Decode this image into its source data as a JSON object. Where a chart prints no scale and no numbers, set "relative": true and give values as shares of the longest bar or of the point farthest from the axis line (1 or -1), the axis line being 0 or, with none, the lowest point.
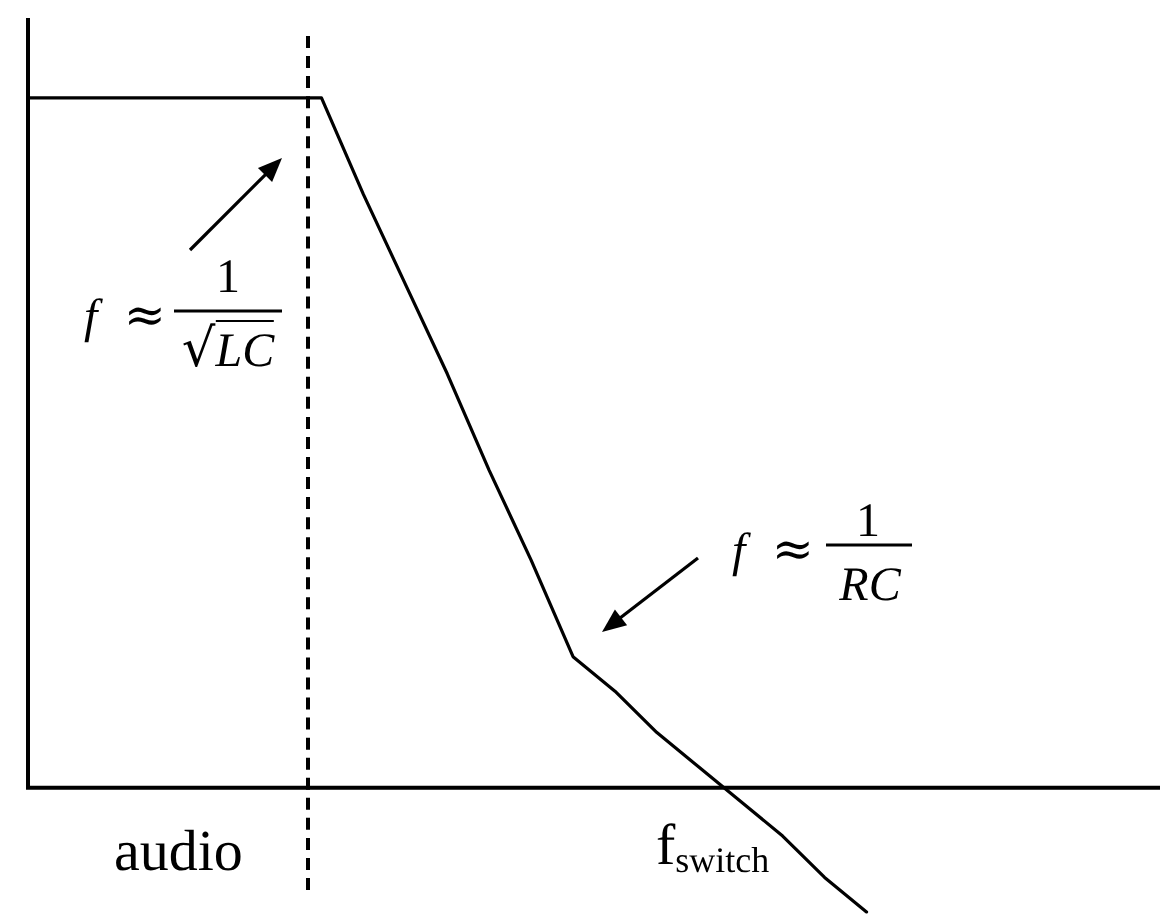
{
  "chart_data": {
    "type": "line",
    "relative": true,
    "categories": [
      null,
      null,
      null,
      null,
      null,
      null,
      null,
      null,
      null,
      null,
      null,
      null,
      null,
      null,
      null,
      null,
      null,
      null,
      null,
      null,
      null,
      null,
      null,
      null,
      null,
      null,
      null,
      null
    ],
    "series": [
      {
        "color": "#000000",
        "values": [
          1,
          1,
          1,
          1,
          1,
          1,
          1,
          1,
          0.86,
          0.73,
          0.6,
          0.46,
          0.33,
          0.19,
          0.14,
          0.08,
          0.03,
          -0.02,
          -0.07,
          -0.13,
          -0.18,
          null,
          null,
          null,
          null,
          null,
          null,
          null
        ]
      }
    ],
    "annotations": [
      "f ≈",
      "1",
      "√LC",
      "f ≈",
      "1",
      "RC",
      "audio",
      "f$_{switch}$"
    ],
    "grid": false,
    "legend": false,
    "tick_labels": false,
    "marker": "none",
    "line_style": "solid"
  }
}
